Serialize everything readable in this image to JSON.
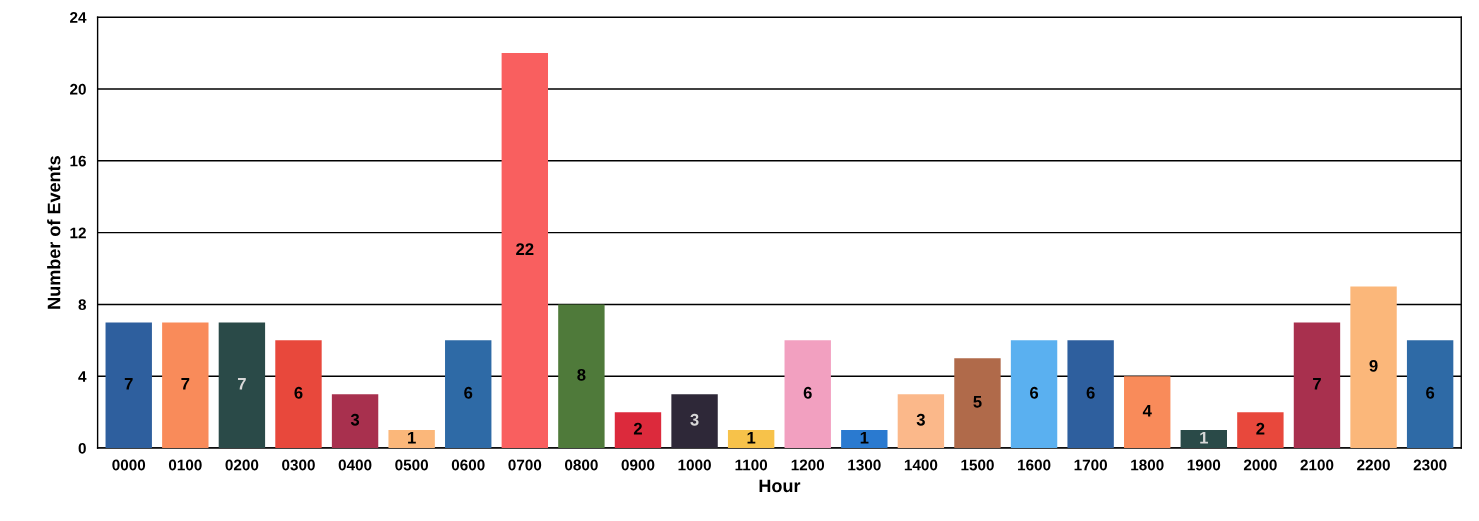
{
  "chart_data": {
    "type": "bar",
    "xlabel": "Hour",
    "ylabel": "Number of Events",
    "categories": [
      "0000",
      "0100",
      "0200",
      "0300",
      "0400",
      "0500",
      "0600",
      "0700",
      "0800",
      "0900",
      "1000",
      "1100",
      "1200",
      "1300",
      "1400",
      "1500",
      "1600",
      "1700",
      "1800",
      "1900",
      "2000",
      "2100",
      "2200",
      "2300"
    ],
    "values": [
      7,
      7,
      7,
      6,
      3,
      1,
      6,
      22,
      8,
      2,
      3,
      1,
      6,
      1,
      3,
      5,
      6,
      6,
      4,
      1,
      2,
      7,
      9,
      6
    ],
    "colors": [
      "#2e5f9e",
      "#f98b5a",
      "#2a4a48",
      "#e8483c",
      "#a8304e",
      "#fbb77a",
      "#2e6aa6",
      "#f95f5f",
      "#4f7a3a",
      "#dc2a3c",
      "#2e2838",
      "#f7c24a",
      "#f2a0c0",
      "#2a7ad0",
      "#fbb88a",
      "#b06a4a",
      "#5ab0f0",
      "#2e5f9e",
      "#f98b5a",
      "#2a4a48",
      "#e8483c",
      "#a8304e",
      "#fbb77a",
      "#2e6aa6"
    ],
    "ylim": [
      0,
      24
    ],
    "yticks": [
      0,
      4,
      8,
      12,
      16,
      20,
      24
    ],
    "grid": "y",
    "data_labels": true
  }
}
